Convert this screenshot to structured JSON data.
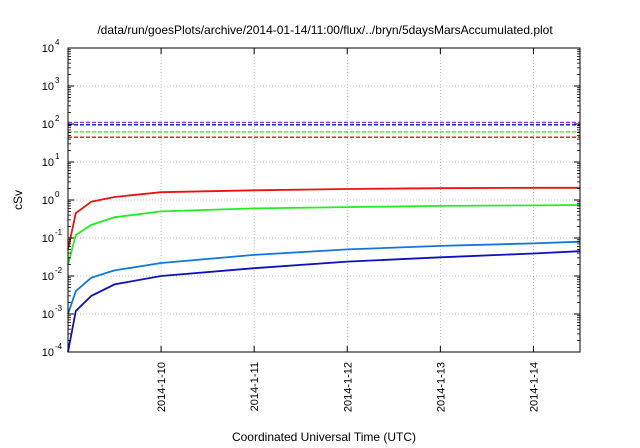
{
  "chart_data": {
    "type": "line",
    "title": "/data/run/goesPlots/archive/2014-01-14/11:00/flux/../bryn/5daysMarsAccumulated.plot",
    "xlabel": "Coordinated Universal Time (UTC)",
    "ylabel": "cSv",
    "y_scale": "log",
    "ylim": [
      0.0001,
      10000
    ],
    "xlim": [
      "2014-01-09 00:00",
      "2014-01-14 12:00"
    ],
    "x_ticks": [
      "2014-1-10",
      "2014-1-11",
      "2014-1-12",
      "2014-1-13",
      "2014-1-14"
    ],
    "y_ticks": [
      {
        "base": "10",
        "exp": "-4"
      },
      {
        "base": "10",
        "exp": "-3"
      },
      {
        "base": "10",
        "exp": "-2"
      },
      {
        "base": "10",
        "exp": "-1"
      },
      {
        "base": "10",
        "exp": "0"
      },
      {
        "base": "10",
        "exp": "1"
      },
      {
        "base": "10",
        "exp": "2"
      },
      {
        "base": "10",
        "exp": "3"
      },
      {
        "base": "10",
        "exp": "4"
      }
    ],
    "grid": true,
    "series": [
      {
        "color": "#ee1111",
        "style": "solid",
        "x": [
          "2014-01-09 00:00",
          "2014-01-09 02:00",
          "2014-01-09 06:00",
          "2014-01-09 12:00",
          "2014-01-10 00:00",
          "2014-01-11 00:00",
          "2014-01-12 00:00",
          "2014-01-13 00:00",
          "2014-01-14 00:00",
          "2014-01-14 12:00"
        ],
        "y": [
          0.05,
          0.45,
          0.9,
          1.2,
          1.6,
          1.8,
          1.95,
          2.05,
          2.1,
          2.1
        ]
      },
      {
        "color": "#22ee22",
        "style": "solid",
        "x": [
          "2014-01-09 00:00",
          "2014-01-09 02:00",
          "2014-01-09 06:00",
          "2014-01-09 12:00",
          "2014-01-10 00:00",
          "2014-01-11 00:00",
          "2014-01-12 00:00",
          "2014-01-13 00:00",
          "2014-01-14 00:00",
          "2014-01-14 12:00"
        ],
        "y": [
          0.02,
          0.12,
          0.22,
          0.35,
          0.5,
          0.6,
          0.65,
          0.7,
          0.72,
          0.74
        ]
      },
      {
        "color": "#1177dd",
        "style": "solid",
        "x": [
          "2014-01-09 00:00",
          "2014-01-09 02:00",
          "2014-01-09 06:00",
          "2014-01-09 12:00",
          "2014-01-10 00:00",
          "2014-01-11 00:00",
          "2014-01-12 00:00",
          "2014-01-13 00:00",
          "2014-01-14 00:00",
          "2014-01-14 12:00"
        ],
        "y": [
          0.001,
          0.004,
          0.009,
          0.014,
          0.022,
          0.036,
          0.05,
          0.062,
          0.072,
          0.08
        ]
      },
      {
        "color": "#1111bb",
        "style": "solid",
        "x": [
          "2014-01-09 00:00",
          "2014-01-09 02:00",
          "2014-01-09 06:00",
          "2014-01-09 12:00",
          "2014-01-10 00:00",
          "2014-01-11 00:00",
          "2014-01-12 00:00",
          "2014-01-13 00:00",
          "2014-01-14 00:00",
          "2014-01-14 12:00"
        ],
        "y": [
          0.0001,
          0.0012,
          0.003,
          0.006,
          0.01,
          0.016,
          0.024,
          0.031,
          0.039,
          0.045
        ]
      },
      {
        "color": "#ee1111",
        "style": "dashed",
        "x": [
          "2014-01-09 00:00",
          "2014-01-14 12:00"
        ],
        "y": [
          45,
          45
        ]
      },
      {
        "color": "#22ee22",
        "style": "dashed",
        "x": [
          "2014-01-09 00:00",
          "2014-01-14 12:00"
        ],
        "y": [
          62,
          62
        ]
      },
      {
        "color": "#1111bb",
        "style": "dashed",
        "x": [
          "2014-01-09 00:00",
          "2014-01-14 12:00"
        ],
        "y": [
          95,
          95
        ]
      },
      {
        "color": "#9933dd",
        "style": "dashed",
        "x": [
          "2014-01-09 00:00",
          "2014-01-14 12:00"
        ],
        "y": [
          110,
          110
        ]
      }
    ]
  }
}
